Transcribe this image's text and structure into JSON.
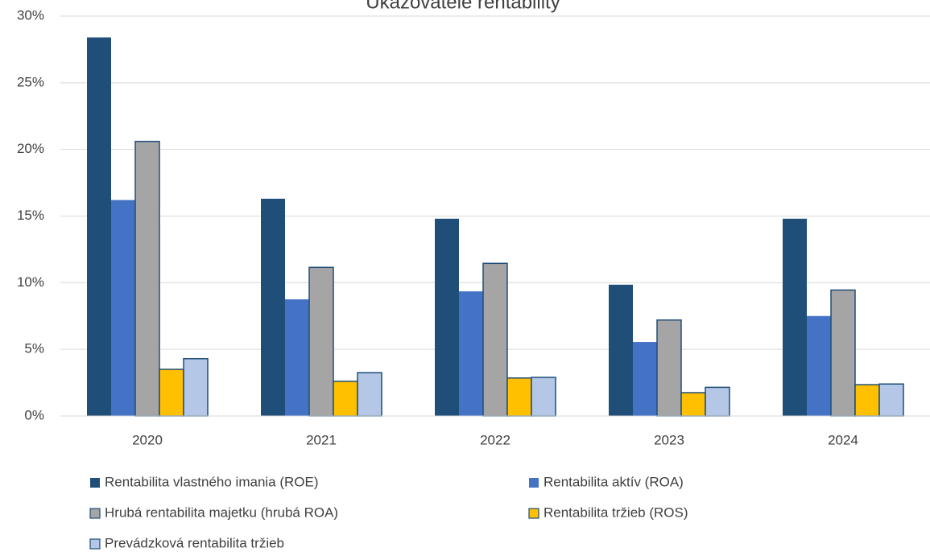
{
  "chart_data": {
    "type": "bar",
    "title": "Ukazovatele rentability",
    "categories": [
      "2020",
      "2021",
      "2022",
      "2023",
      "2024"
    ],
    "series": [
      {
        "name": "Rentabilita vlastného imania (ROE)",
        "color": "#1f4e79",
        "values": [
          28.4,
          16.3,
          14.8,
          9.85,
          14.8
        ]
      },
      {
        "name": "Rentabilita aktív (ROA)",
        "color": "#4472c4",
        "values": [
          16.2,
          8.75,
          9.35,
          5.55,
          7.5
        ]
      },
      {
        "name": "Hrubá rentabilita majetku (hrubá ROA)",
        "color": "#a5a5a5",
        "values": [
          20.6,
          11.15,
          11.45,
          7.2,
          9.45
        ]
      },
      {
        "name": "Rentabilita tržieb (ROS)",
        "color": "#ffc000",
        "values": [
          3.5,
          2.6,
          2.85,
          1.75,
          2.35
        ]
      },
      {
        "name": "Prevádzková rentabilita tržieb",
        "color": "#b4c7e7",
        "values": [
          4.3,
          3.25,
          2.9,
          2.15,
          2.4
        ]
      }
    ],
    "ylim": [
      0,
      30
    ],
    "yticks": [
      {
        "value": 0,
        "label": "0%"
      },
      {
        "value": 5,
        "label": "5%"
      },
      {
        "value": 10,
        "label": "10%"
      },
      {
        "value": 15,
        "label": "15%"
      },
      {
        "value": 20,
        "label": "20%"
      },
      {
        "value": 25,
        "label": "25%"
      },
      {
        "value": 30,
        "label": "30%"
      }
    ],
    "grid": true,
    "legend": "bottom"
  }
}
